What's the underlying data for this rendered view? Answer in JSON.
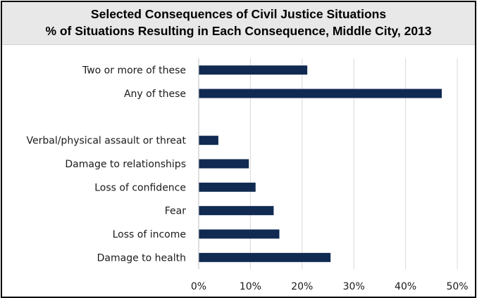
{
  "chart_data": {
    "type": "bar",
    "orientation": "horizontal",
    "title": "Selected Consequences of Civil Justice Situations",
    "subtitle": "% of Situations Resulting in Each Consequence, Middle City, 2013",
    "categories": [
      "Two or more of these",
      "Any of these",
      "",
      "Verbal/physical assault or threat",
      "Damage to relationships",
      "Loss of confidence",
      "Fear",
      "Loss of income",
      "Damage to health"
    ],
    "values": [
      21,
      47,
      null,
      3.8,
      9.7,
      11,
      14.5,
      15.6,
      25.5
    ],
    "unit": "%",
    "xlim": [
      0,
      50
    ],
    "x_ticks": [
      0,
      10,
      20,
      30,
      40,
      50
    ],
    "x_tick_labels": [
      "0%",
      "10%",
      "20%",
      "30%",
      "40%",
      "50%"
    ],
    "grid": "vertical",
    "legend": "none",
    "bar_color": "#102a52",
    "grid_color": "#d9d9d9",
    "title_band_color": "#e8e8e8"
  }
}
